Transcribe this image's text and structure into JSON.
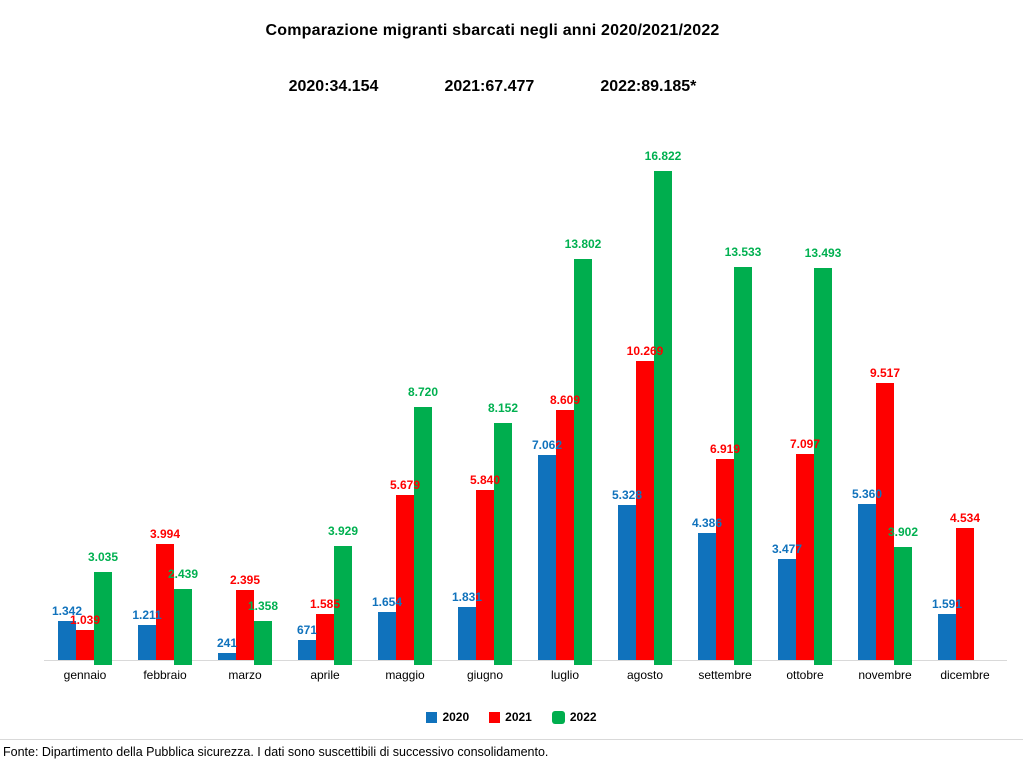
{
  "title": "Comparazione migranti sbarcati negli anni 2020/2021/2022",
  "totals": [
    "2020:34.154",
    "2021:67.477",
    "2022:89.185*"
  ],
  "footer": "Fonte: Dipartimento della Pubblica sicurezza. I dati sono suscettibili di successivo consolidamento.",
  "colors": {
    "blue_2020": "#1072bc",
    "red_2021": "#fe0000",
    "green_2022": "#00ae4e",
    "label_green": "#00b050",
    "axis_line": "#d9d9d9"
  },
  "chart_data": {
    "type": "bar",
    "title": "Comparazione migranti sbarcati negli anni 2020/2021/2022",
    "xlabel": "",
    "ylabel": "",
    "ylim": [
      0,
      17000
    ],
    "grid": false,
    "legend_position": "bottom",
    "categories": [
      "gennaio",
      "febbraio",
      "marzo",
      "aprile",
      "maggio",
      "giugno",
      "luglio",
      "agosto",
      "settembre",
      "ottobre",
      "novembre",
      "dicembre"
    ],
    "series": [
      {
        "name": "2020",
        "color": "#1072bc",
        "label_color": "#1072bc",
        "values": [
          1342,
          1211,
          241,
          671,
          1654,
          1831,
          7062,
          5328,
          4386,
          3477,
          5360,
          1591
        ],
        "labels": [
          "1.342",
          "1.211",
          "241",
          "671",
          "1.654",
          "1.831",
          "7.062",
          "5.328",
          "4.386",
          "3.477",
          "5.360",
          "1.591"
        ]
      },
      {
        "name": "2021",
        "color": "#fe0000",
        "label_color": "#ff0000",
        "values": [
          1039,
          3994,
          2395,
          1585,
          5679,
          5840,
          8609,
          10269,
          6919,
          7097,
          9517,
          4534
        ],
        "labels": [
          "1.039",
          "3.994",
          "2.395",
          "1.585",
          "5.679",
          "5.840",
          "8.609",
          "10.269",
          "6.919",
          "7.097",
          "9.517",
          "4.534"
        ]
      },
      {
        "name": "2022",
        "color": "#00ae4e",
        "label_color": "#00b050",
        "values": [
          3035,
          2439,
          1358,
          3929,
          8720,
          8152,
          13802,
          16822,
          13533,
          13493,
          3902,
          null
        ],
        "labels": [
          "3.035",
          "2.439",
          "1.358",
          "3.929",
          "8.720",
          "8.152",
          "13.802",
          "16.822",
          "13.533",
          "13.493",
          "3.902",
          null
        ]
      }
    ],
    "annual_totals": {
      "2020": 34154,
      "2021": 67477,
      "2022": 89185
    }
  }
}
